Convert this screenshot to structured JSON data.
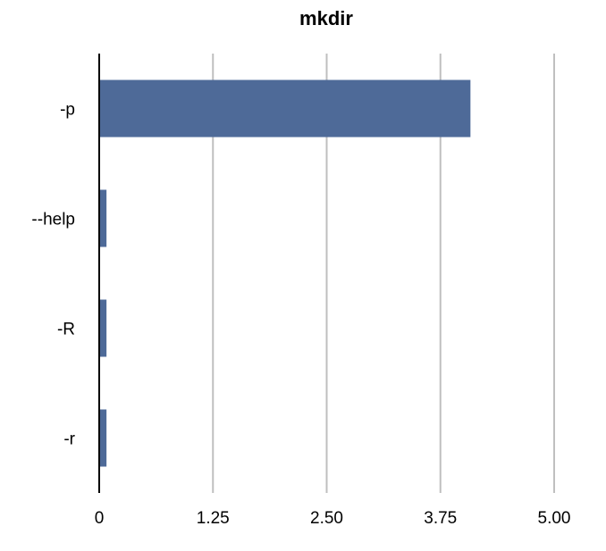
{
  "chart_data": {
    "type": "bar",
    "orientation": "horizontal",
    "title": "mkdir",
    "xlabel": "",
    "ylabel": "",
    "categories": [
      "-p",
      "--help",
      "-R",
      "-r"
    ],
    "values": [
      4.08,
      0.08,
      0.08,
      0.08
    ],
    "xlim": [
      0,
      5
    ],
    "xticks": [
      0,
      1.25,
      2.5,
      3.75,
      5
    ],
    "xtick_labels": [
      "0",
      "1.25",
      "2.50",
      "3.75",
      "5.00"
    ],
    "grid": "vertical",
    "legend": "none",
    "bar_color": "#4e6a98",
    "grid_color": "#bfbfbf",
    "axis_color": "#000000"
  }
}
